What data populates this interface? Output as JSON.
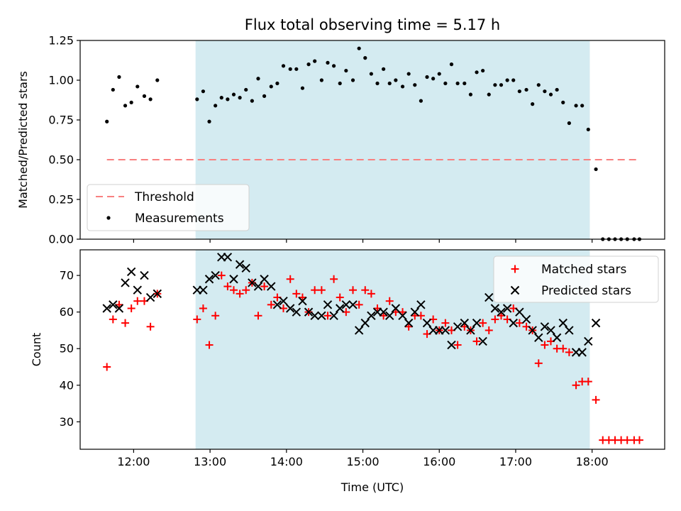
{
  "chart_data": {
    "title": "Flux total observing time = 5.17 h",
    "xlabel": "Time (UTC)",
    "x_unit": "hours UTC",
    "xlim": [
      11.3,
      18.95
    ],
    "x_ticks": [
      {
        "value": 12,
        "label": "12:00"
      },
      {
        "value": 13,
        "label": "13:00"
      },
      {
        "value": 14,
        "label": "14:00"
      },
      {
        "value": 15,
        "label": "15:00"
      },
      {
        "value": 16,
        "label": "16:00"
      },
      {
        "value": 17,
        "label": "17:00"
      },
      {
        "value": 18,
        "label": "18:00"
      }
    ],
    "shaded_span": [
      12.81,
      17.97
    ],
    "shade_color": "#d4ebf1",
    "panels": [
      {
        "type": "scatter",
        "ylabel": "Matched/Predicted stars",
        "ylim": [
          0,
          1.25
        ],
        "yticks": [
          {
            "value": 0,
            "label": "0.00"
          },
          {
            "value": 0.25,
            "label": "0.25"
          },
          {
            "value": 0.5,
            "label": "0.50"
          },
          {
            "value": 0.75,
            "label": "0.75"
          },
          {
            "value": 1.0,
            "label": "1.00"
          },
          {
            "value": 1.25,
            "label": "1.25"
          }
        ],
        "legend_position": "bottom-left",
        "threshold": {
          "name": "Threshold",
          "y": 0.5,
          "x_range": [
            11.65,
            18.6
          ],
          "color": "#f88080"
        },
        "series": [
          {
            "name": "Measurements",
            "marker": "dot",
            "color": "#000000",
            "x": [
              11.65,
              11.73,
              11.81,
              11.89,
              11.97,
              12.05,
              12.14,
              12.22,
              12.31,
              12.83,
              12.91,
              12.99,
              13.07,
              13.15,
              13.23,
              13.31,
              13.39,
              13.47,
              13.55,
              13.63,
              13.71,
              13.8,
              13.88,
              13.96,
              14.05,
              14.13,
              14.21,
              14.29,
              14.37,
              14.46,
              14.54,
              14.62,
              14.7,
              14.78,
              14.87,
              14.95,
              15.03,
              15.11,
              15.19,
              15.27,
              15.35,
              15.43,
              15.52,
              15.6,
              15.68,
              15.76,
              15.84,
              15.92,
              16.0,
              16.08,
              16.16,
              16.24,
              16.33,
              16.41,
              16.49,
              16.57,
              16.65,
              16.73,
              16.81,
              16.89,
              16.97,
              17.05,
              17.14,
              17.22,
              17.3,
              17.38,
              17.46,
              17.54,
              17.62,
              17.7,
              17.79,
              17.87,
              17.95,
              18.05,
              18.14,
              18.22,
              18.3,
              18.38,
              18.46,
              18.55,
              18.62
            ],
            "y": [
              0.74,
              0.94,
              1.02,
              0.84,
              0.86,
              0.96,
              0.9,
              0.88,
              1.0,
              0.88,
              0.93,
              0.74,
              0.84,
              0.89,
              0.88,
              0.91,
              0.89,
              0.94,
              0.87,
              1.01,
              0.9,
              0.96,
              0.98,
              1.09,
              1.07,
              1.07,
              0.95,
              1.1,
              1.12,
              1.0,
              1.11,
              1.09,
              0.98,
              1.06,
              1.0,
              1.2,
              1.14,
              1.04,
              0.98,
              1.07,
              0.98,
              1.0,
              0.96,
              1.04,
              0.97,
              0.87,
              1.02,
              1.01,
              1.04,
              0.98,
              1.1,
              0.98,
              0.98,
              0.91,
              1.05,
              1.06,
              0.91,
              0.97,
              0.97,
              1.0,
              1.0,
              0.93,
              0.94,
              0.85,
              0.97,
              0.93,
              0.91,
              0.94,
              0.86,
              0.73,
              0.84,
              0.84,
              0.69,
              0.44,
              0,
              0,
              0,
              0,
              0,
              0,
              0
            ]
          }
        ]
      },
      {
        "type": "scatter",
        "ylabel": "Count",
        "ylim": [
          22.5,
          77
        ],
        "yticks": [
          {
            "value": 30,
            "label": "30"
          },
          {
            "value": 40,
            "label": "40"
          },
          {
            "value": 50,
            "label": "50"
          },
          {
            "value": 60,
            "label": "60"
          },
          {
            "value": 70,
            "label": "70"
          }
        ],
        "legend_position": "top-right",
        "series": [
          {
            "name": "Matched stars",
            "marker": "plus",
            "color": "#ff0000",
            "x": [
              11.65,
              11.73,
              11.81,
              11.89,
              11.97,
              12.05,
              12.14,
              12.22,
              12.31,
              12.83,
              12.91,
              12.99,
              13.07,
              13.15,
              13.23,
              13.31,
              13.39,
              13.47,
              13.55,
              13.63,
              13.71,
              13.8,
              13.88,
              13.96,
              14.05,
              14.13,
              14.21,
              14.29,
              14.37,
              14.46,
              14.54,
              14.62,
              14.7,
              14.78,
              14.87,
              14.95,
              15.03,
              15.11,
              15.19,
              15.27,
              15.35,
              15.43,
              15.52,
              15.6,
              15.68,
              15.76,
              15.84,
              15.92,
              16.0,
              16.08,
              16.16,
              16.24,
              16.33,
              16.41,
              16.49,
              16.57,
              16.65,
              16.73,
              16.81,
              16.89,
              16.97,
              17.05,
              17.14,
              17.22,
              17.3,
              17.38,
              17.46,
              17.54,
              17.62,
              17.7,
              17.79,
              17.87,
              17.95,
              18.05,
              18.14,
              18.22,
              18.3,
              18.38,
              18.46,
              18.55,
              18.62
            ],
            "y": [
              45,
              58,
              62,
              57,
              61,
              63,
              63,
              56,
              65,
              58,
              61,
              51,
              59,
              70,
              67,
              66,
              65,
              66,
              68,
              59,
              67,
              62,
              64,
              61,
              69,
              65,
              64,
              60,
              66,
              66,
              59,
              69,
              64,
              60,
              66,
              62,
              66,
              65,
              61,
              59,
              63,
              60,
              60,
              56,
              59,
              59,
              54,
              58,
              55,
              57,
              55,
              51,
              56,
              55,
              52,
              57,
              55,
              58,
              59,
              58,
              61,
              57,
              56,
              55,
              46,
              51,
              52,
              50,
              50,
              49,
              40,
              41,
              41,
              36,
              25,
              25,
              25,
              25,
              25,
              25,
              25
            ]
          },
          {
            "name": "Predicted stars",
            "marker": "cross",
            "color": "#000000",
            "x": [
              11.65,
              11.73,
              11.81,
              11.89,
              11.97,
              12.05,
              12.14,
              12.22,
              12.31,
              12.83,
              12.91,
              12.99,
              13.07,
              13.15,
              13.23,
              13.31,
              13.39,
              13.47,
              13.55,
              13.63,
              13.71,
              13.8,
              13.88,
              13.96,
              14.05,
              14.13,
              14.21,
              14.29,
              14.37,
              14.46,
              14.54,
              14.62,
              14.7,
              14.78,
              14.87,
              14.95,
              15.03,
              15.11,
              15.19,
              15.27,
              15.35,
              15.43,
              15.52,
              15.6,
              15.68,
              15.76,
              15.84,
              15.92,
              16.0,
              16.08,
              16.16,
              16.24,
              16.33,
              16.41,
              16.49,
              16.57,
              16.65,
              16.73,
              16.81,
              16.89,
              16.97,
              17.05,
              17.14,
              17.22,
              17.3,
              17.38,
              17.46,
              17.54,
              17.62,
              17.7,
              17.79,
              17.87,
              17.95,
              18.05
            ],
            "y": [
              61,
              62,
              61,
              68,
              71,
              66,
              70,
              64,
              65,
              66,
              66,
              69,
              70,
              75,
              75,
              69,
              73,
              72,
              68,
              67,
              69,
              67,
              62,
              63,
              61,
              60,
              63,
              60,
              59,
              59,
              62,
              59,
              61,
              62,
              62,
              55,
              57,
              59,
              60,
              60,
              59,
              61,
              59,
              57,
              60,
              62,
              57,
              55,
              55,
              55,
              51,
              56,
              57,
              55,
              57,
              52,
              64,
              61,
              60,
              61,
              57,
              60,
              58,
              55,
              53,
              56,
              55,
              53,
              57,
              55,
              49,
              49,
              52,
              57
            ]
          }
        ]
      }
    ]
  }
}
